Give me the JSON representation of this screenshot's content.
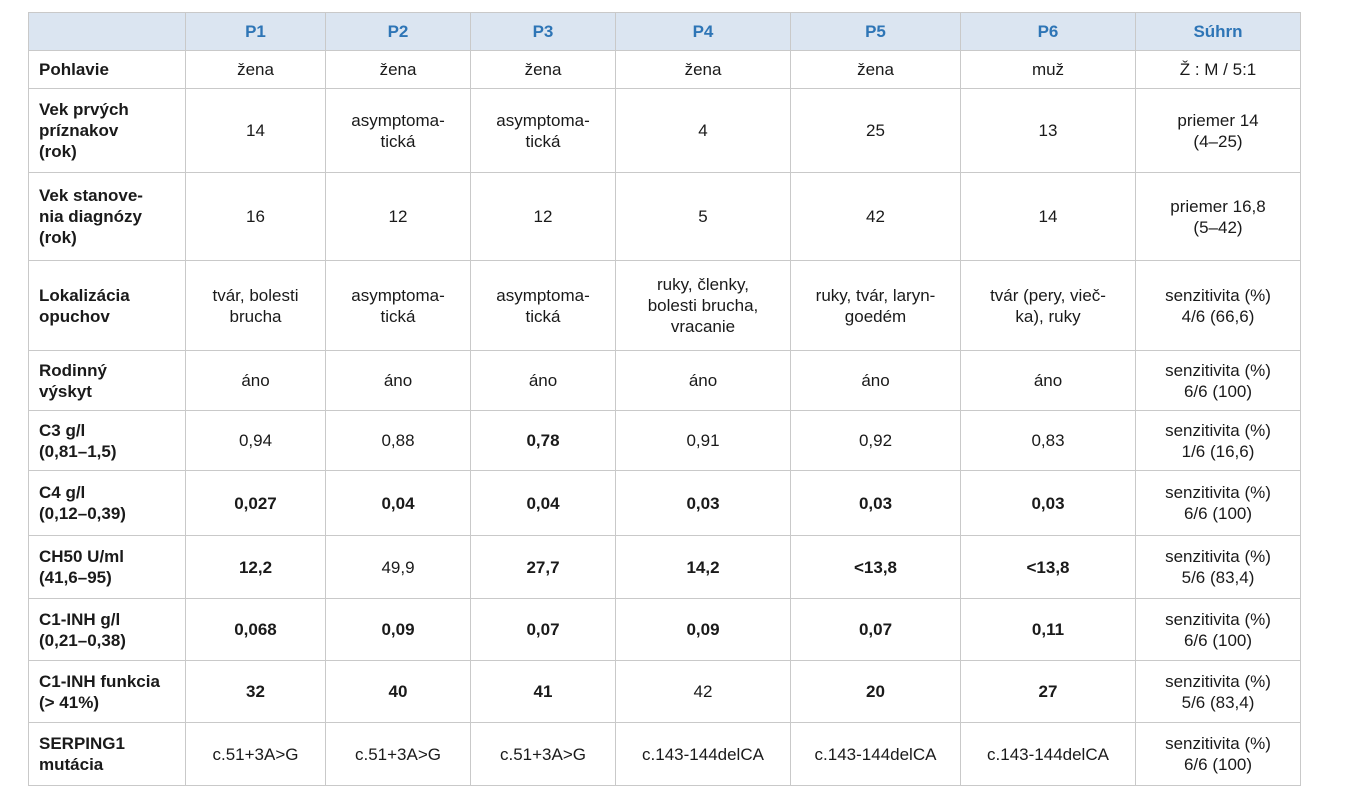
{
  "table": {
    "header": [
      "P1",
      "P2",
      "P3",
      "P4",
      "P5",
      "P6",
      "Súhrn"
    ],
    "rows": [
      {
        "label": "Pohlavie",
        "cells": [
          "žena",
          "žena",
          "žena",
          "žena",
          "žena",
          "muž"
        ],
        "summary": "Ž : M / 5:1",
        "bold": []
      },
      {
        "label": "Vek prvých\npríznakov\n(rok)",
        "cells": [
          "14",
          "asymptoma-\ntická",
          "asymptoma-\ntická",
          "4",
          "25",
          "13"
        ],
        "summary": "priemer 14\n(4–25)",
        "bold": []
      },
      {
        "label": "Vek stanove-\nnia diagnózy\n(rok)",
        "cells": [
          "16",
          "12",
          "12",
          "5",
          "42",
          "14"
        ],
        "summary": "priemer 16,8\n(5–42)",
        "bold": []
      },
      {
        "label": "Lokalizácia\nopuchov",
        "cells": [
          "tvár, bolesti\nbrucha",
          "asymptoma-\ntická",
          "asymptoma-\ntická",
          "ruky, členky,\nbolesti brucha,\nvracanie",
          "ruky, tvár, laryn-\ngoedém",
          "tvár (pery, vieč-\nka), ruky"
        ],
        "summary": "senzitivita (%)\n4/6 (66,6)",
        "bold": []
      },
      {
        "label": "Rodinný\nvýskyt",
        "cells": [
          "áno",
          "áno",
          "áno",
          "áno",
          "áno",
          "áno"
        ],
        "summary": "senzitivita (%)\n6/6 (100)",
        "bold": []
      },
      {
        "label": "C3 g/l\n(0,81–1,5)",
        "cells": [
          "0,94",
          "0,88",
          "0,78",
          "0,91",
          "0,92",
          "0,83"
        ],
        "summary": "senzitivita (%)\n1/6 (16,6)",
        "bold": [
          2
        ]
      },
      {
        "label": "C4 g/l\n(0,12–0,39)",
        "cells": [
          "0,027",
          "0,04",
          "0,04",
          "0,03",
          "0,03",
          "0,03"
        ],
        "summary": "senzitivita (%)\n6/6 (100)",
        "bold": [
          0,
          1,
          2,
          3,
          4,
          5
        ]
      },
      {
        "label": "CH50 U/ml\n(41,6–95)",
        "cells": [
          "12,2",
          "49,9",
          "27,7",
          "14,2",
          "<13,8",
          "<13,8"
        ],
        "summary": "senzitivita (%)\n5/6 (83,4)",
        "bold": [
          0,
          2,
          3,
          4,
          5
        ]
      },
      {
        "label": "C1-INH g/l\n(0,21–0,38)",
        "cells": [
          "0,068",
          "0,09",
          "0,07",
          "0,09",
          "0,07",
          "0,11"
        ],
        "summary": "senzitivita (%)\n6/6 (100)",
        "bold": [
          0,
          1,
          2,
          3,
          4,
          5
        ]
      },
      {
        "label": "C1-INH funkcia\n(> 41%)",
        "cells": [
          "32",
          "40",
          "41",
          "42",
          "20",
          "27"
        ],
        "summary": "senzitivita (%)\n5/6 (83,4)",
        "bold": [
          0,
          1,
          2,
          4,
          5
        ]
      },
      {
        "label": "SERPING1\nmutácia",
        "cells": [
          "c.51+3A>G",
          "c.51+3A>G",
          "c.51+3A>G",
          "c.143-144delCA",
          "c.143-144delCA",
          "c.143-144delCA"
        ],
        "summary": "senzitivita (%)\n6/6 (100)",
        "bold": []
      }
    ]
  }
}
